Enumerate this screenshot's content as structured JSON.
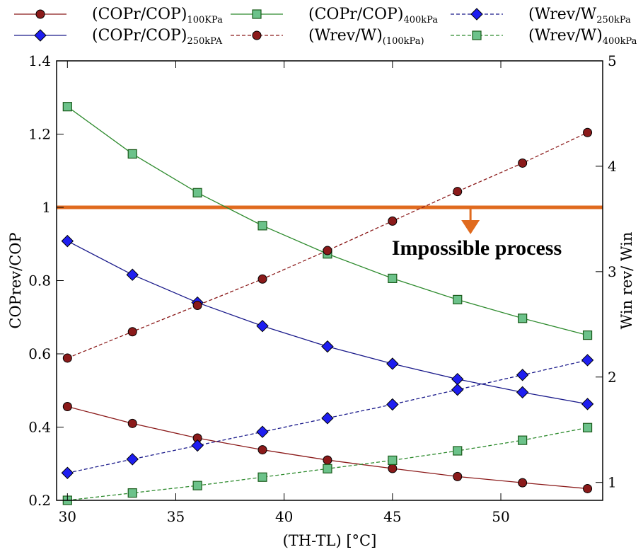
{
  "chart_data": {
    "type": "line",
    "xlabel": "(TH-TL) [°C]",
    "ylabel": "COPrev/COP",
    "y2label": "Win rev/ Win",
    "xlim": [
      29.5,
      54.7
    ],
    "ylim": [
      0.2,
      1.4
    ],
    "y2lim": [
      0.83,
      5
    ],
    "xticks": [
      "30",
      "35",
      "40",
      "45",
      "50"
    ],
    "yticks": [
      "0.2",
      "0.4",
      "0.6",
      "0.8",
      "1",
      "1.2",
      "1.4"
    ],
    "y2ticks": [
      "1",
      "2",
      "3",
      "4",
      "5"
    ],
    "grid": false,
    "x": [
      30,
      33,
      36,
      39,
      42,
      45,
      48,
      51,
      54
    ],
    "series": [
      {
        "name": "(COPr/COP)",
        "sub": "100KPa",
        "axis": "left",
        "color": "#8b1a1a",
        "marker": "circle",
        "dash": false,
        "values": [
          0.456,
          0.41,
          0.37,
          0.338,
          0.31,
          0.287,
          0.265,
          0.248,
          0.232
        ]
      },
      {
        "name": "(COPr/COP)",
        "sub": "250kPA",
        "axis": "left",
        "color": "#1a1a8b",
        "marker": "diamond",
        "dash": false,
        "values": [
          0.908,
          0.816,
          0.74,
          0.676,
          0.62,
          0.573,
          0.531,
          0.495,
          0.463
        ]
      },
      {
        "name": "(COPr/COP)",
        "sub": "400kPa",
        "axis": "left",
        "color": "#2e8b2e",
        "marker": "square",
        "dash": false,
        "values": [
          1.275,
          1.146,
          1.04,
          0.95,
          0.873,
          0.806,
          0.748,
          0.697,
          0.651
        ]
      },
      {
        "name": "(Wrev/W)",
        "sub": "(100kPa)",
        "axis": "right",
        "color": "#8b1a1a",
        "marker": "circle",
        "dash": true,
        "values": [
          2.18,
          2.43,
          2.68,
          2.93,
          3.2,
          3.48,
          3.76,
          4.03,
          4.32
        ]
      },
      {
        "name": "(Wrev/W",
        "sub": "250kPa",
        "axis": "right",
        "color": "#1a1a8b",
        "marker": "diamond",
        "dash": true,
        "values": [
          1.09,
          1.22,
          1.35,
          1.48,
          1.61,
          1.74,
          1.88,
          2.02,
          2.16
        ]
      },
      {
        "name": "(Wrev/W)",
        "sub": "400kPa",
        "axis": "right",
        "color": "#2e8b2e",
        "marker": "square",
        "dash": true,
        "values": [
          0.83,
          0.9,
          0.97,
          1.05,
          1.13,
          1.21,
          1.3,
          1.4,
          1.52
        ]
      }
    ],
    "reference_line": {
      "y": 1.0,
      "color": "#e06a1e"
    },
    "annotation": {
      "text": "Impossible process",
      "x": 48.6,
      "y": 0.915
    }
  }
}
